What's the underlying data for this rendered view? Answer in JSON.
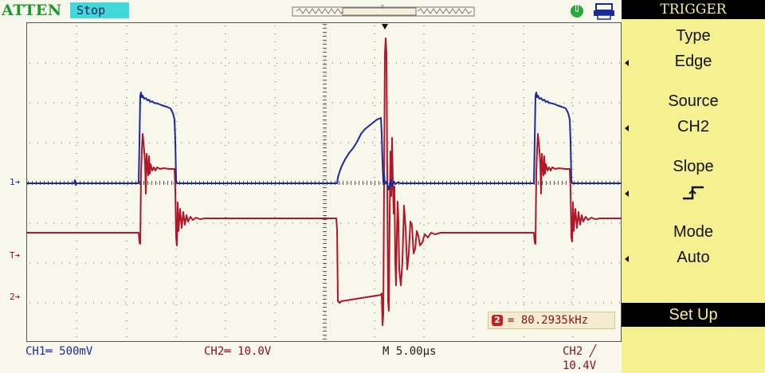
{
  "header": {
    "brand": "ATTEN",
    "run_state": "Stop",
    "memory_position_marker": "T"
  },
  "screen": {
    "channel_markers": {
      "ch1": "1➔",
      "trigger": "T➔",
      "ch2": "2➔"
    },
    "frequency_readout": "= 80.2935kHz",
    "frequency_source_icon": "2"
  },
  "footer": {
    "ch1_scale": "CH1═ 500mV",
    "ch2_scale": "CH2═ 10.0V",
    "timebase": "M 5.00µs",
    "trigger_info": "CH2 ╱ 10.4V"
  },
  "menu": {
    "title": "TRIGGER",
    "items": [
      {
        "label": "Type",
        "value": "Edge"
      },
      {
        "label": "Source",
        "value": "CH2"
      },
      {
        "label": "Slope",
        "value": ""
      },
      {
        "label": "Mode",
        "value": "Auto"
      }
    ],
    "button": "Set Up",
    "slope_icon": "rising-edge-icon"
  },
  "colors": {
    "ch1": "#1a2a9a",
    "ch2": "#b01828",
    "grid": "#555555",
    "background": "#f7f7ec",
    "menu_bg": "#f5f090"
  }
}
